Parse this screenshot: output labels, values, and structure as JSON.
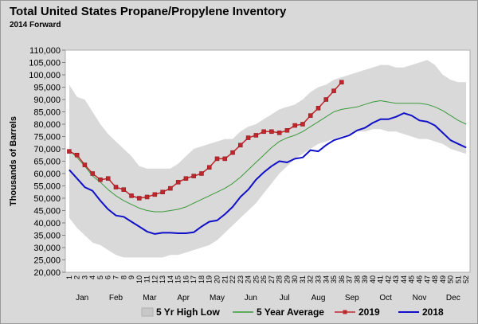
{
  "chart_data": {
    "type": "line",
    "title": "Total United States Propane/Propylene Inventory",
    "subtitle": "2014 Forward",
    "ylabel": "Thousands of Barrels",
    "xlabel": "",
    "ylim": [
      20000,
      110000
    ],
    "y_ticks": [
      "110,000",
      "105,000",
      "100,000",
      "95,000",
      "90,000",
      "85,000",
      "80,000",
      "75,000",
      "70,000",
      "65,000",
      "60,000",
      "55,000",
      "50,000",
      "45,000",
      "40,000",
      "35,000",
      "30,000",
      "25,000",
      "20,000"
    ],
    "x": [
      1,
      2,
      3,
      4,
      5,
      6,
      7,
      8,
      9,
      10,
      11,
      12,
      13,
      14,
      15,
      16,
      17,
      18,
      19,
      20,
      21,
      22,
      23,
      24,
      25,
      26,
      27,
      28,
      29,
      30,
      31,
      32,
      33,
      34,
      35,
      36,
      37,
      38,
      39,
      40,
      41,
      42,
      43,
      44,
      45,
      46,
      47,
      48,
      49,
      50,
      51,
      52
    ],
    "x_tick_labels": [
      "1",
      "3",
      "5",
      "7",
      "9",
      "11",
      "13",
      "15",
      "17",
      "19",
      "21",
      "23",
      "25",
      "27",
      "29",
      "31",
      "33",
      "35",
      "37",
      "39",
      "41",
      "43",
      "45",
      "47",
      "49",
      "51",
      "2",
      "4",
      "6",
      "8",
      "10",
      "12",
      "14",
      "16",
      "18",
      "20",
      "22",
      "24",
      "26",
      "28",
      "30",
      "32",
      "34",
      "36",
      "38",
      "40",
      "42",
      "44",
      "46",
      "48",
      "50",
      "52"
    ],
    "months": [
      "Jan",
      "Feb",
      "Mar",
      "Apr",
      "May",
      "Jun",
      "Jul",
      "Aug",
      "Sep",
      "Oct",
      "Nov",
      "Dec"
    ],
    "grid": false,
    "legend_position": "bottom",
    "series": [
      {
        "name": "5 Yr High Low",
        "kind": "band",
        "color": "#d9d9d9",
        "high": [
          96000,
          91000,
          90000,
          85000,
          80000,
          76000,
          73000,
          70000,
          67000,
          63000,
          62000,
          62000,
          62000,
          62000,
          64000,
          67000,
          70000,
          71000,
          72000,
          73000,
          74000,
          74000,
          77000,
          79000,
          80000,
          82000,
          84000,
          86000,
          87000,
          88000,
          90000,
          93000,
          95000,
          96000,
          98000,
          99000,
          100000,
          101000,
          102000,
          103000,
          104000,
          104000,
          103000,
          103000,
          104000,
          105000,
          106000,
          104000,
          100000,
          98000,
          97000,
          97000
        ],
        "low": [
          42000,
          38000,
          35000,
          32000,
          31000,
          29000,
          27000,
          26000,
          26000,
          26000,
          26000,
          26000,
          26000,
          27000,
          27000,
          28000,
          29000,
          30000,
          31000,
          33000,
          36000,
          39000,
          42000,
          45000,
          48000,
          52000,
          56000,
          60000,
          63000,
          66000,
          68000,
          70000,
          72000,
          73000,
          74000,
          75000,
          76000,
          77000,
          77000,
          78000,
          78000,
          77000,
          77000,
          76000,
          75000,
          74000,
          74000,
          73000,
          72000,
          70000,
          69000,
          68000
        ]
      },
      {
        "name": "5 Year Average",
        "kind": "line",
        "color": "#3a9a3a",
        "values": [
          69500,
          66500,
          63000,
          59000,
          56500,
          53500,
          51000,
          49000,
          47500,
          46000,
          45000,
          44500,
          44500,
          45000,
          45500,
          46500,
          48000,
          49500,
          51000,
          52500,
          54000,
          56000,
          58500,
          61500,
          64500,
          67500,
          70500,
          73000,
          74500,
          75500,
          77000,
          79000,
          81000,
          83000,
          85000,
          86000,
          86500,
          87000,
          88000,
          89000,
          89500,
          89000,
          88500,
          88500,
          88500,
          88500,
          88000,
          87000,
          85500,
          83500,
          81500,
          80000
        ]
      },
      {
        "name": "2019",
        "kind": "line-markers",
        "color": "#c0272d",
        "values": [
          69000,
          67500,
          63500,
          60000,
          57500,
          58000,
          54500,
          53500,
          51000,
          50000,
          50500,
          51500,
          52500,
          54000,
          56500,
          58000,
          59000,
          60000,
          62500,
          66000,
          66000,
          68500,
          71500,
          74500,
          75500,
          77000,
          77000,
          76500,
          77500,
          79500,
          80000,
          83500,
          86500,
          90000,
          93500,
          97000,
          null,
          null,
          null,
          null,
          null,
          null,
          null,
          null,
          null,
          null,
          null,
          null,
          null,
          null,
          null,
          null
        ]
      },
      {
        "name": "2018",
        "kind": "line",
        "color": "#1010c8",
        "values": [
          61500,
          58000,
          54500,
          53000,
          49000,
          45500,
          43000,
          42500,
          40500,
          38500,
          36500,
          35500,
          36000,
          36000,
          35800,
          35800,
          36200,
          38500,
          40500,
          41000,
          43500,
          46500,
          50500,
          53500,
          57500,
          60500,
          63000,
          65000,
          64500,
          66000,
          66500,
          69500,
          69000,
          71500,
          73500,
          74500,
          75500,
          77500,
          78500,
          80500,
          82000,
          82000,
          83000,
          84500,
          83500,
          81500,
          81000,
          79500,
          76500,
          73500,
          72000,
          70500
        ]
      }
    ]
  }
}
